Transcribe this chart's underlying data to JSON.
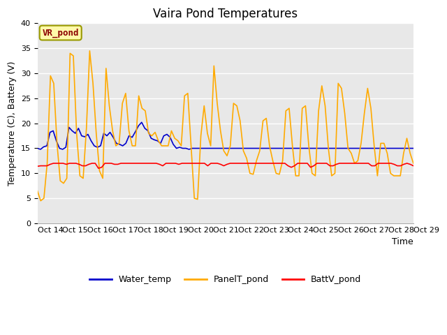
{
  "title": "Vaira Pond Temperatures",
  "xlabel": "Time",
  "ylabel": "Temperature (C), Battery (V)",
  "annotation": "VR_pond",
  "xlim": [
    0,
    15
  ],
  "ylim": [
    0,
    40
  ],
  "yticks": [
    0,
    5,
    10,
    15,
    20,
    25,
    30,
    35,
    40
  ],
  "xtick_labels": [
    "Oct 14",
    "Oct 15",
    "Oct 16",
    "Oct 17",
    "Oct 18",
    "Oct 19",
    "Oct 20",
    "Oct 21",
    "Oct 22",
    "Oct 23",
    "Oct 24",
    "Oct 25",
    "Oct 26",
    "Oct 27",
    "Oct 28",
    "Oct 29"
  ],
  "bg_color": "#e8e8e8",
  "fig_color": "#ffffff",
  "line_blue": "#0000cc",
  "line_orange": "#ffaa00",
  "line_red": "#ff0000",
  "legend_labels": [
    "Water_temp",
    "PanelT_pond",
    "BattV_pond"
  ],
  "water_temp": [
    15.0,
    14.8,
    15.3,
    15.5,
    18.2,
    18.5,
    16.5,
    15.0,
    14.8,
    15.2,
    19.2,
    18.5,
    18.0,
    19.0,
    17.5,
    17.3,
    17.8,
    16.5,
    15.5,
    15.2,
    15.5,
    18.0,
    17.5,
    18.2,
    17.2,
    16.0,
    15.8,
    15.5,
    16.0,
    17.5,
    17.2,
    18.3,
    19.5,
    20.2,
    19.0,
    18.5,
    17.0,
    16.7,
    16.5,
    16.0,
    17.5,
    17.8,
    17.2,
    15.8,
    15.0,
    15.2,
    15.0,
    15.0,
    14.8,
    15.0,
    15.0,
    15.0,
    15.0,
    15.0,
    15.0,
    15.0,
    15.0,
    15.0,
    15.0,
    15.0,
    15.0,
    15.0,
    15.0,
    15.0,
    15.0,
    15.0,
    15.0,
    15.0,
    15.0,
    15.0,
    15.0,
    15.0,
    15.0,
    15.0,
    15.0,
    15.0,
    15.0,
    15.0,
    15.0,
    15.0,
    15.0,
    15.0,
    15.0,
    15.0,
    15.0,
    15.0,
    15.0,
    15.0,
    15.0,
    15.0,
    15.0,
    15.0,
    15.0,
    15.0,
    15.0,
    15.0,
    15.0,
    15.0,
    15.0,
    15.0,
    15.0,
    15.0,
    15.0,
    15.0,
    15.0,
    15.0,
    15.0,
    15.0,
    15.0,
    15.0,
    15.0,
    15.0,
    15.0,
    15.0,
    15.0,
    15.0,
    15.0,
    15.0,
    15.0,
    15.0
  ],
  "panel_temp": [
    6.5,
    4.5,
    5.0,
    12.0,
    29.5,
    28.0,
    16.0,
    8.5,
    8.0,
    9.0,
    34.0,
    33.5,
    18.0,
    9.5,
    9.0,
    19.0,
    34.5,
    28.0,
    18.0,
    10.5,
    9.0,
    31.0,
    23.5,
    18.5,
    15.5,
    16.0,
    24.0,
    26.0,
    18.5,
    15.5,
    15.5,
    25.5,
    23.0,
    22.5,
    18.0,
    17.5,
    18.2,
    16.5,
    15.5,
    15.5,
    15.5,
    18.5,
    17.0,
    16.5,
    15.5,
    25.5,
    26.0,
    15.5,
    5.0,
    4.8,
    17.5,
    23.5,
    18.0,
    15.5,
    31.5,
    24.0,
    18.5,
    14.5,
    13.5,
    15.5,
    24.0,
    23.5,
    20.5,
    14.5,
    13.0,
    10.0,
    9.8,
    12.5,
    14.5,
    20.5,
    21.0,
    15.5,
    12.5,
    10.0,
    9.8,
    12.5,
    22.5,
    23.0,
    15.5,
    9.5,
    9.5,
    23.0,
    23.5,
    15.5,
    10.0,
    9.5,
    22.5,
    27.5,
    23.5,
    15.0,
    9.5,
    10.0,
    28.0,
    27.0,
    22.0,
    15.0,
    14.0,
    12.0,
    12.5,
    16.0,
    22.0,
    27.0,
    23.0,
    15.5,
    9.5,
    16.0,
    16.0,
    14.0,
    10.0,
    9.5,
    9.5,
    9.5,
    14.0,
    17.0,
    14.0,
    12.0
  ],
  "batt_temp": [
    11.4,
    11.5,
    11.5,
    11.5,
    11.8,
    12.0,
    12.0,
    12.0,
    12.0,
    11.8,
    12.0,
    12.0,
    12.0,
    11.8,
    11.5,
    11.5,
    11.8,
    12.0,
    12.0,
    11.0,
    11.2,
    12.0,
    12.0,
    12.0,
    11.8,
    11.8,
    12.0,
    12.0,
    12.0,
    12.0,
    12.0,
    12.0,
    12.0,
    12.0,
    12.0,
    12.0,
    12.0,
    12.0,
    11.8,
    11.5,
    12.0,
    12.0,
    12.0,
    12.0,
    11.8,
    12.0,
    12.0,
    12.0,
    12.0,
    12.0,
    12.0,
    12.0,
    12.0,
    11.5,
    12.0,
    12.0,
    12.0,
    11.8,
    11.5,
    11.8,
    12.0,
    12.0,
    12.0,
    12.0,
    12.0,
    12.0,
    12.0,
    12.0,
    12.0,
    12.0,
    12.0,
    12.0,
    12.0,
    12.0,
    12.0,
    12.0,
    12.0,
    12.0,
    11.5,
    11.2,
    11.5,
    12.0,
    12.0,
    12.0,
    12.0,
    11.2,
    11.5,
    12.0,
    12.0,
    12.0,
    12.0,
    11.5,
    11.5,
    11.8,
    12.0,
    12.0,
    12.0,
    12.0,
    12.0,
    12.0,
    12.0,
    12.0,
    12.0,
    12.0,
    11.5,
    11.5,
    12.0,
    12.0,
    12.0,
    12.0,
    12.0,
    11.8,
    11.5,
    11.5,
    11.8,
    12.0,
    11.8,
    11.5
  ],
  "grid_color": "#ffffff",
  "title_fontsize": 12,
  "axis_fontsize": 9,
  "tick_fontsize": 8,
  "legend_fontsize": 9,
  "linewidth": 1.2
}
